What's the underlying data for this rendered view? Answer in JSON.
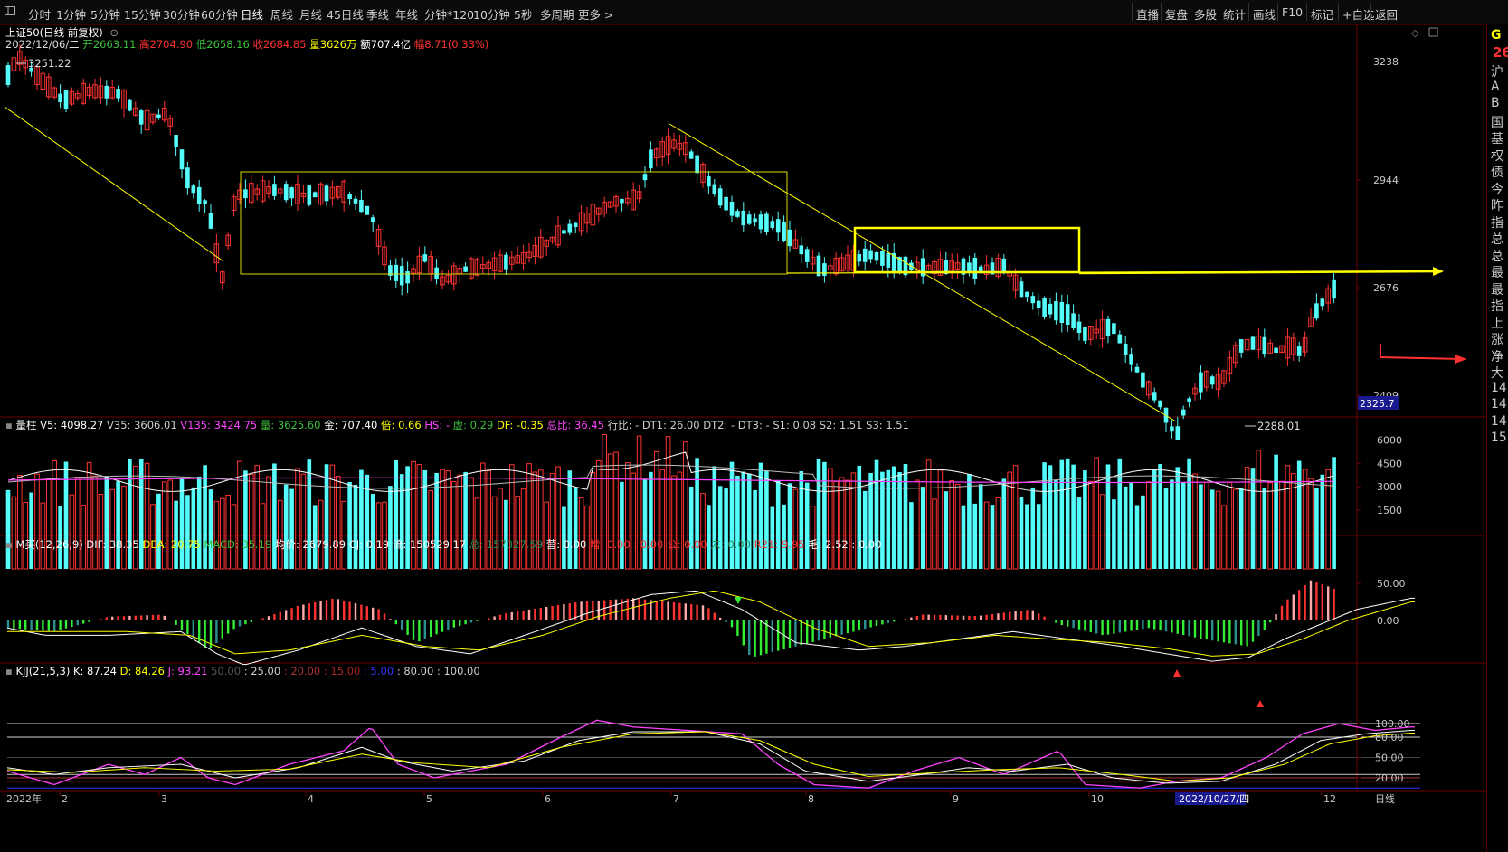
{
  "toolbar": {
    "timeframes": [
      "分时",
      "1分钟",
      "5分钟",
      "15分钟",
      "30分钟",
      "60分钟",
      "日线",
      "周线",
      "月线",
      "45日线",
      "季线",
      "年线",
      "分钟*120",
      "10分钟",
      "5秒",
      "多周期",
      "更多 >"
    ],
    "active_timeframe": "日线",
    "right_buttons": [
      "直播",
      "复盘",
      "多股",
      "统计",
      "画线",
      "F10",
      "标记",
      "+自选",
      "返回"
    ]
  },
  "header": {
    "title": "上证50(日线 前复权)",
    "date": "2022/12/06/二",
    "quote": [
      {
        "label": "开",
        "value": "2663.11"
      },
      {
        "label": "高",
        "value": "2704.90"
      },
      {
        "label": "低",
        "value": "2658.16"
      },
      {
        "label": "收",
        "value": "2684.85"
      },
      {
        "label": "量",
        "value": "3626万"
      },
      {
        "label": "额",
        "value": "707.4亿"
      },
      {
        "label": "幅",
        "value": "8.71(0.33%)"
      }
    ]
  },
  "price_axis": {
    "ticks": [
      "3238",
      "2944",
      "2676",
      "2409"
    ],
    "current_tag": "2325.7"
  },
  "annotations": {
    "high_label": "3251.22",
    "low_label": "2288.01"
  },
  "volume_panel": {
    "label": "量柱",
    "items": [
      {
        "k": "V5:",
        "v": "4098.27",
        "c": "#ffffff"
      },
      {
        "k": "V35:",
        "v": "3606.01",
        "c": "#cfcfcf"
      },
      {
        "k": "V135:",
        "v": "3424.75",
        "c": "#ff44ff"
      },
      {
        "k": "量:",
        "v": "3625.60",
        "c": "#3cbf3c"
      },
      {
        "k": "金:",
        "v": "707.40",
        "c": "#ffffff"
      },
      {
        "k": "倍:",
        "v": "0.66",
        "c": "#ffff00"
      },
      {
        "k": "HS:",
        "v": "-",
        "c": "#ff44ff"
      },
      {
        "k": "虚:",
        "v": "0.29",
        "c": "#3cbf3c"
      },
      {
        "k": "DF:",
        "v": "-0.35",
        "c": "#ffff00"
      },
      {
        "k": "总比:",
        "v": "36.45",
        "c": "#ff44ff"
      },
      {
        "k": "行比:",
        "v": "-",
        "c": "#cfcfcf"
      },
      {
        "k": "DT1:",
        "v": "26.00",
        "c": "#cfcfcf"
      },
      {
        "k": "DT2:",
        "v": "-",
        "c": "#cfcfcf"
      },
      {
        "k": "DT3:",
        "v": "-",
        "c": "#cfcfcf"
      },
      {
        "k": "S1:",
        "v": "0.08",
        "c": "#cfcfcf"
      },
      {
        "k": "S2:",
        "v": "1.51",
        "c": "#cfcfcf"
      },
      {
        "k": "S3:",
        "v": "1.51",
        "c": "#cfcfcf"
      }
    ],
    "ticks": [
      "6000",
      "4500",
      "3000",
      "1500"
    ]
  },
  "macd_panel": {
    "label": "M买(12,26,9)",
    "items": [
      {
        "k": "DIF:",
        "v": "38.35",
        "c": "#ffffff"
      },
      {
        "k": "DEA:",
        "v": "20.75",
        "c": "#ffff00"
      },
      {
        "k": "MACD:",
        "v": "35.19",
        "c": "#3cbf3c"
      },
      {
        "k": "均价:",
        "v": "2679.89",
        "c": "#ffffff"
      },
      {
        "k": "CJ:",
        "v": "0.19",
        "c": "#ffffff"
      },
      {
        "k": "流:",
        "v": "150529.17",
        "c": "#ffffff"
      },
      {
        "k": "总:",
        "v": "157327.59",
        "c": "#2e8b57"
      },
      {
        "k": "营:",
        "v": "0.00",
        "c": "#ffffff"
      },
      {
        "k": "增:",
        "v": "0.00 : 0.00",
        "c": "#ff3333"
      },
      {
        "k": "公:",
        "v": "0.00",
        "c": "#ff3333"
      },
      {
        "k": "未:",
        "v": "0.00",
        "c": "#2e8b57"
      },
      {
        "k": "R21:",
        "v": "9.95",
        "c": "#ff3333"
      },
      {
        "k": "毛:",
        "v": "2.52 : 0.00",
        "c": "#ffffff"
      }
    ],
    "ticks": [
      "50.00",
      "0.00"
    ]
  },
  "kdj_panel": {
    "label": "KJJ(21,5,3)",
    "items": [
      {
        "k": "K:",
        "v": "87.24",
        "c": "#ffffff"
      },
      {
        "k": "D:",
        "v": "84.26",
        "c": "#ffff00"
      },
      {
        "k": "J:",
        "v": "93.21",
        "c": "#ff44ff"
      },
      {
        "k": "",
        "v": "50.00",
        "c": "#555555"
      },
      {
        "k": "",
        "v": ": 25.00",
        "c": "#cfcfcf"
      },
      {
        "k": "",
        "v": ": 20.00",
        "c": "#aa3333"
      },
      {
        "k": "",
        "v": ": 15.00",
        "c": "#aa2222"
      },
      {
        "k": "",
        "v": ": 5.00",
        "c": "#3333ff"
      },
      {
        "k": "",
        "v": ": 80.00",
        "c": "#cfcfcf"
      },
      {
        "k": "",
        "v": ": 100.00",
        "c": "#cfcfcf"
      }
    ],
    "ticks": [
      "100.00",
      "80.00",
      "50.00",
      "20.00"
    ]
  },
  "x_axis": {
    "labels": [
      "2022年",
      "2",
      "3",
      "4",
      "5",
      "6",
      "7",
      "8",
      "9",
      "10",
      "2022/10/27/四",
      "12"
    ],
    "corner": "日线"
  },
  "right_strip": {
    "top": "G",
    "price": "26",
    "chars": [
      "沪",
      "A",
      "B",
      "国",
      "基",
      "权",
      "债",
      "今",
      "昨",
      "指",
      "总",
      "总",
      "最",
      "最",
      "指",
      "上",
      "涨",
      "净",
      "大",
      "14",
      "14",
      "14",
      "15"
    ]
  },
  "colors": {
    "up": "#ff3232",
    "down": "#54fcfc",
    "ma_white": "#ffffff",
    "ma_yellow": "#ffff00",
    "j_line": "#ff44ff",
    "box": "#ffff00",
    "arrow_red": "#ff3030"
  },
  "chart_data": {
    "type": "candlestick",
    "title": "上证50(日线 前复权)",
    "price_range": [
      2288.01,
      3251.22
    ],
    "key_points": [
      {
        "x": "2022-01 start",
        "price": 3251.22,
        "label": "high"
      },
      {
        "x": "2022-10-31",
        "price": 2288.01,
        "label": "low"
      },
      {
        "x": "2022-12-06",
        "open": 2663.11,
        "high": 2704.9,
        "low": 2658.16,
        "close": 2684.85
      }
    ],
    "series": [
      {
        "name": "V5",
        "last": 4098.27
      },
      {
        "name": "V35",
        "last": 3606.01
      },
      {
        "name": "V135",
        "last": 3424.75
      },
      {
        "name": "DIF",
        "last": 38.35
      },
      {
        "name": "DEA",
        "last": 20.75
      },
      {
        "name": "MACD",
        "last": 35.19
      },
      {
        "name": "K",
        "last": 87.24
      },
      {
        "name": "D",
        "last": 84.26
      },
      {
        "name": "J",
        "last": 93.21
      }
    ]
  }
}
